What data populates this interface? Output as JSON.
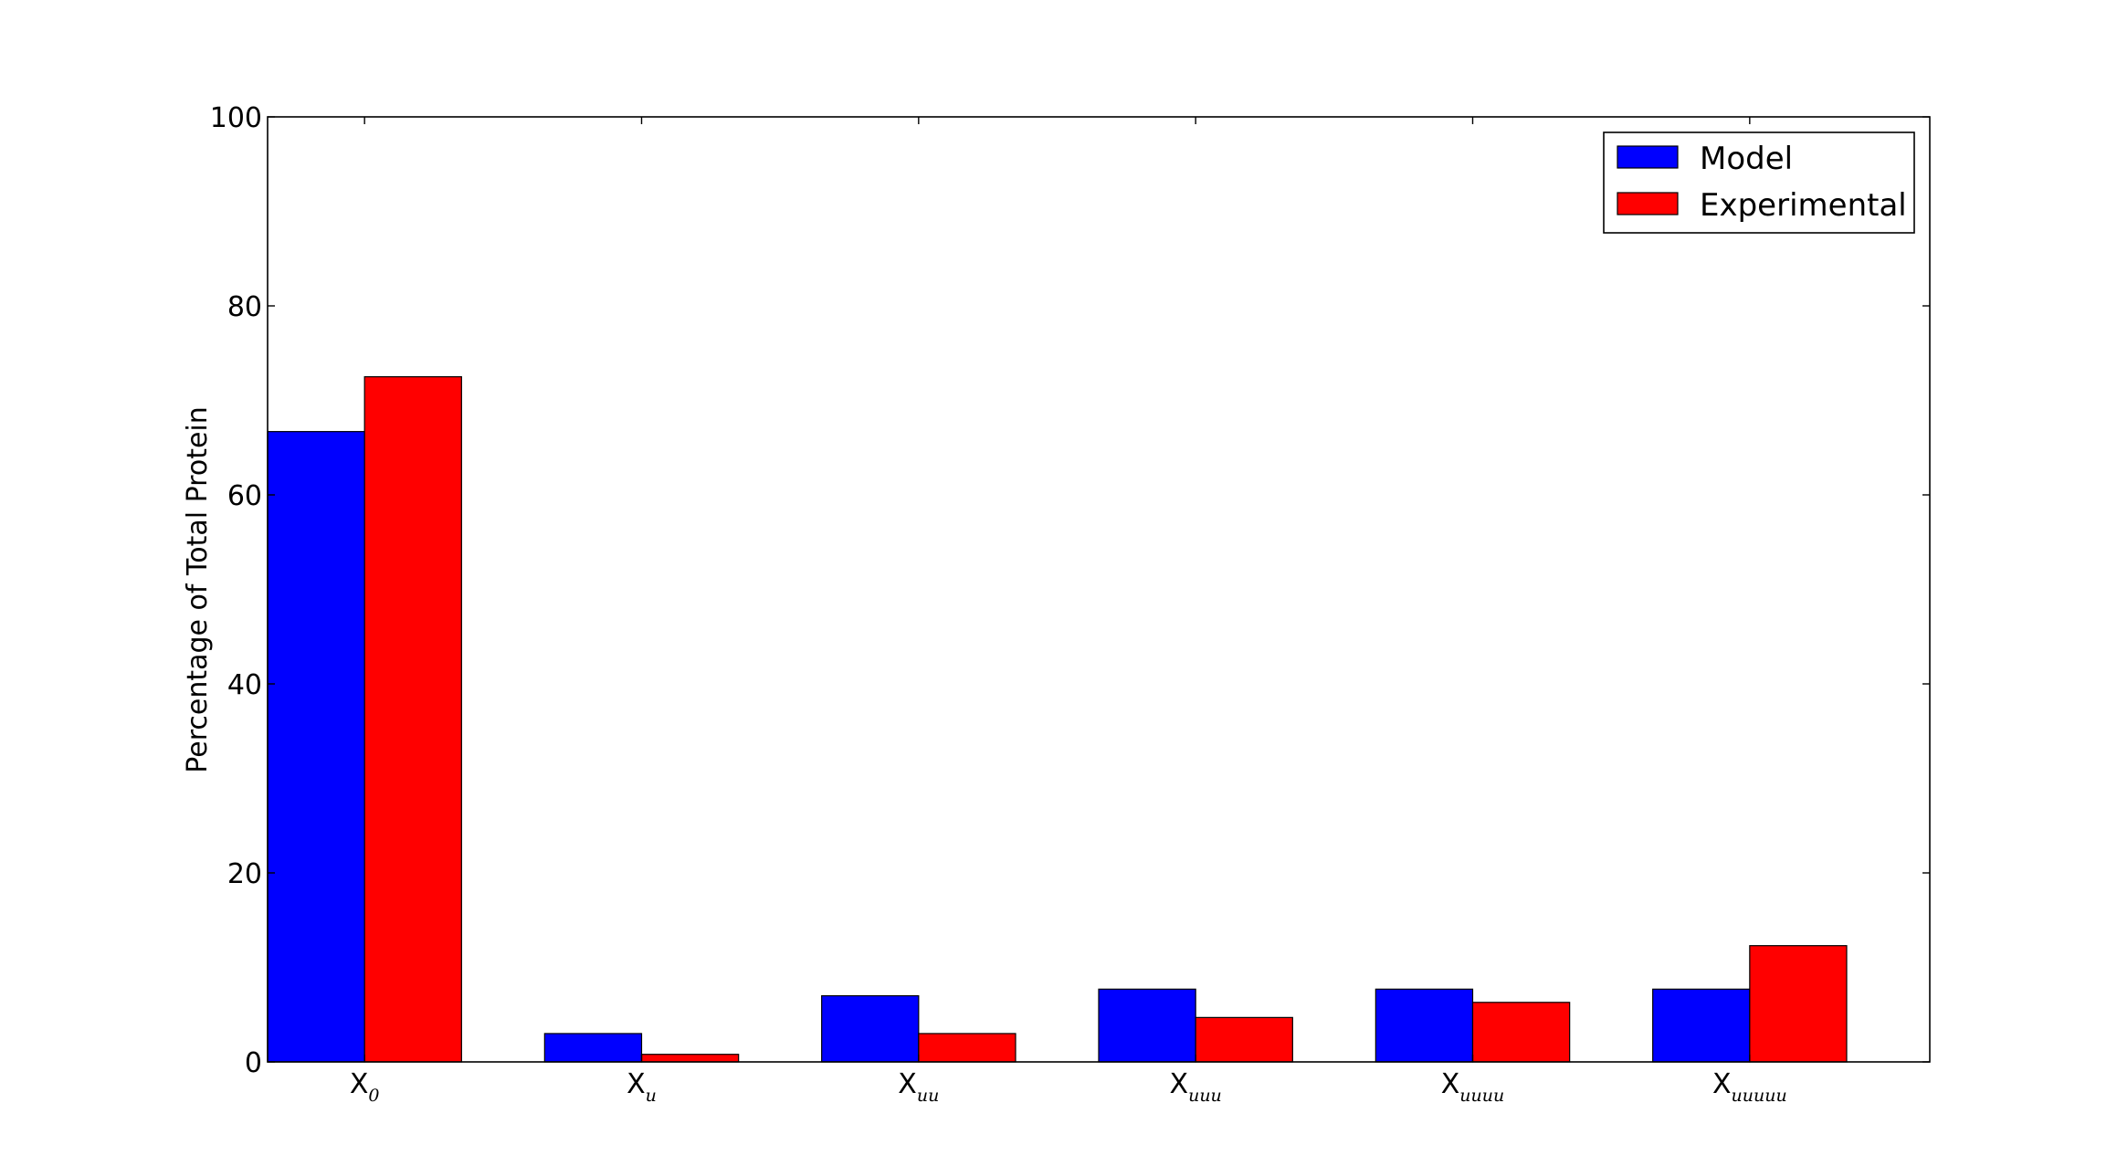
{
  "chart_data": {
    "type": "bar",
    "categories": [
      {
        "base": "X",
        "sub": "0"
      },
      {
        "base": "X",
        "sub": "u"
      },
      {
        "base": "X",
        "sub": "uu"
      },
      {
        "base": "X",
        "sub": "uuu"
      },
      {
        "base": "X",
        "sub": "uuuu"
      },
      {
        "base": "X",
        "sub": "uuuuu"
      }
    ],
    "series": [
      {
        "name": "Model",
        "color": "#0000ff",
        "values": [
          66.7,
          3.0,
          7.0,
          7.7,
          7.7,
          7.7
        ]
      },
      {
        "name": "Experimental",
        "color": "#ff0000",
        "values": [
          72.5,
          0.8,
          3.0,
          4.7,
          6.3,
          12.3
        ]
      }
    ],
    "title": "",
    "xlabel": "",
    "ylabel": "Percentage of Total Protein",
    "ylim": [
      0,
      100
    ],
    "yticks": [
      0,
      20,
      40,
      60,
      80,
      100
    ],
    "grid": false,
    "legend_position": "top-right"
  }
}
